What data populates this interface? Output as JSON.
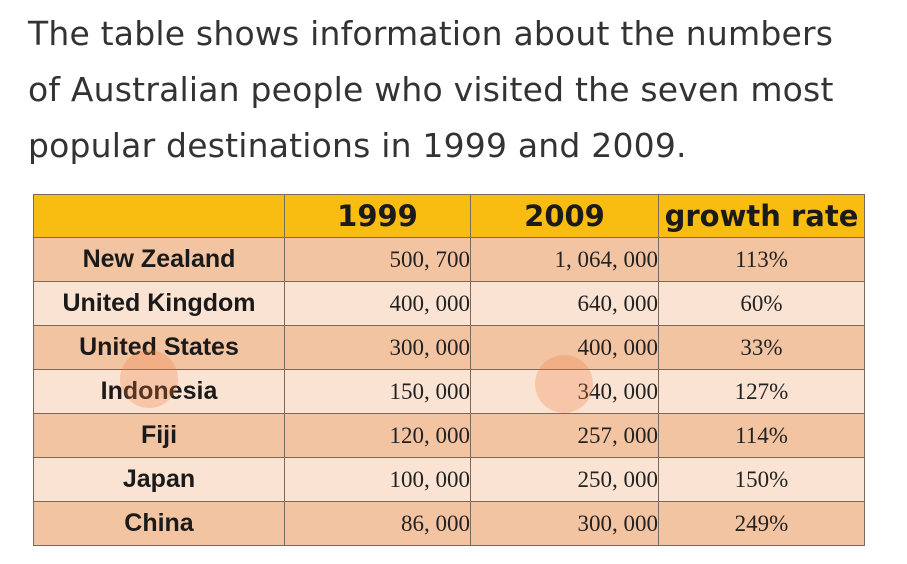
{
  "intro": {
    "lines": [
      "The table shows information about the numbers",
      "of Australian people who visited the seven most",
      "popular destinations in 1999 and 2009."
    ]
  },
  "chart_data": {
    "type": "table",
    "columns": [
      "",
      "1999",
      "2009",
      "growth rate"
    ],
    "rows": [
      {
        "destination": "New Zealand",
        "v1999": "500, 700",
        "v2009": "1, 064, 000",
        "growth": "113%"
      },
      {
        "destination": "United Kingdom",
        "v1999": "400, 000",
        "v2009": "640, 000",
        "growth": "60%"
      },
      {
        "destination": "United States",
        "v1999": "300, 000",
        "v2009": "400, 000",
        "growth": "33%"
      },
      {
        "destination": "Indonesia",
        "v1999": "150, 000",
        "v2009": "340, 000",
        "growth": "127%"
      },
      {
        "destination": "Fiji",
        "v1999": "120, 000",
        "v2009": "257, 000",
        "growth": "114%"
      },
      {
        "destination": "Japan",
        "v1999": "100, 000",
        "v2009": "250, 000",
        "growth": "150%"
      },
      {
        "destination": "China",
        "v1999": "86, 000",
        "v2009": "300, 000",
        "growth": "249%"
      }
    ]
  },
  "colors": {
    "header_bg": "#f9bd12",
    "row_odd_bg": "#f3c4a2",
    "row_even_bg": "#fae3d3",
    "watermark": "#f07a3a"
  }
}
